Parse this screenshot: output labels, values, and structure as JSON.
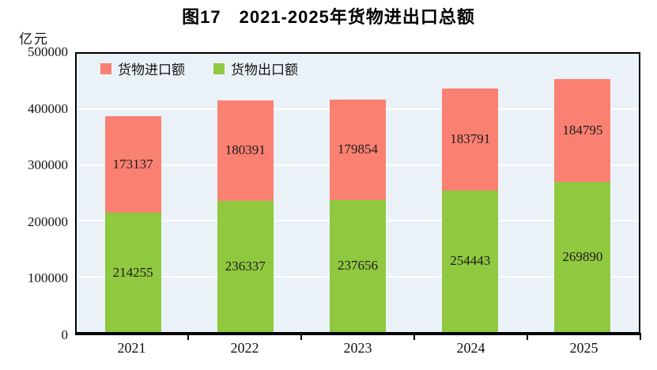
{
  "title": "图17　2021-2025年货物进出口总额",
  "y_unit": "亿元",
  "colors": {
    "plot_background": "#EAF2F7",
    "gridline": "#FFFFFF",
    "axis": "#000000",
    "import": "#FA8072",
    "export": "#90C83F"
  },
  "chart_data": {
    "type": "bar",
    "stacked": true,
    "title": "图17　2021-2025年货物进出口总额",
    "ylabel": "亿元",
    "xlabel": "",
    "categories": [
      "2021",
      "2022",
      "2023",
      "2024",
      "2025"
    ],
    "series": [
      {
        "name": "货物进口额",
        "color": "#FA8072",
        "values": [
          173137,
          180391,
          179854,
          183791,
          184795
        ]
      },
      {
        "name": "货物出口额",
        "color": "#90C83F",
        "values": [
          214255,
          236337,
          237656,
          254443,
          269890
        ]
      }
    ],
    "stack_order_bottom_to_top": [
      "货物出口额",
      "货物进口额"
    ],
    "ylim": [
      0,
      500000
    ],
    "ytick_labels": [
      "500000",
      "400000",
      "300000",
      "200000",
      "100000",
      "0"
    ],
    "ytick_step": 100000,
    "grid": "horizontal-white",
    "legend_position": "top-left-inside",
    "data_labels": "centered-in-segment"
  }
}
